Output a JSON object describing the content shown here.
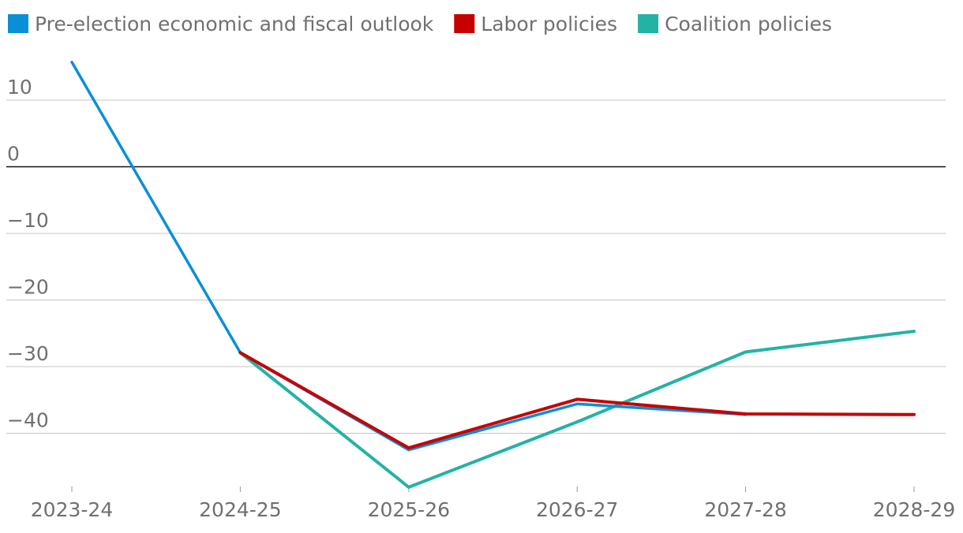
{
  "chart_data": {
    "type": "line",
    "title": "",
    "xlabel": "",
    "ylabel": "",
    "categories": [
      "2023-24",
      "2024-25",
      "2025-26",
      "2026-27",
      "2027-28",
      "2028-29"
    ],
    "ylim": [
      -50,
      16
    ],
    "yticks": [
      10,
      0,
      -10,
      -20,
      -30,
      -40
    ],
    "ytick_labels": [
      "10",
      "0",
      "−10",
      "−20",
      "−30",
      "−40"
    ],
    "grid": true,
    "legend_position": "top-left",
    "series": [
      {
        "name": "Pre-election economic and fiscal outlook",
        "color": "#0a8fd6",
        "values": [
          15.7,
          -27.9,
          -42.5,
          -35.6,
          -37.2,
          null
        ]
      },
      {
        "name": "Labor policies",
        "color": "#c70000",
        "values": [
          null,
          -27.9,
          -42.2,
          -34.9,
          -37.1,
          -37.2
        ]
      },
      {
        "name": "Coalition policies",
        "color": "#22b3a6",
        "values": [
          null,
          -27.9,
          -48.1,
          -38.3,
          -27.8,
          -24.7
        ]
      }
    ]
  }
}
